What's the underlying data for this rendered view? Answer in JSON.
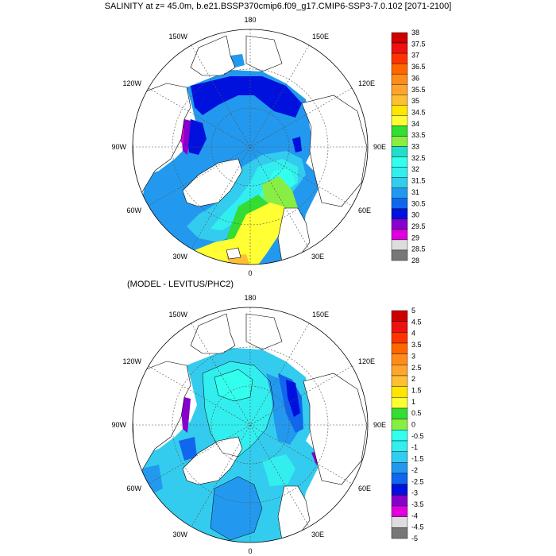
{
  "top_panel": {
    "title": "SALINITY at z=  45.0m, b.e21.BSSP370cmip6.f09_g17.CMIP6-SSP3-7.0.102 [2071-2100]",
    "lon_labels": {
      "n180": "180",
      "n150e": "150E",
      "n120e": "120E",
      "n90e": "90E",
      "n60e": "60E",
      "n30e": "30E",
      "n0": "0",
      "n30w": "30W",
      "n60w": "60W",
      "n90w": "90W",
      "n120w": "120W",
      "n150w": "150W"
    },
    "colorbar": {
      "labels": [
        "38",
        "37.5",
        "37",
        "36.5",
        "36",
        "35.5",
        "35",
        "34.5",
        "34",
        "33.5",
        "33",
        "32.5",
        "32",
        "31.5",
        "31",
        "30.5",
        "30",
        "29.5",
        "29",
        "28.5",
        "28"
      ],
      "colors": [
        "#cc0000",
        "#ee1111",
        "#ff3300",
        "#ff6600",
        "#ff8c1a",
        "#ffa52e",
        "#ffbf33",
        "#ffe600",
        "#ffff33",
        "#33dd33",
        "#88ee44",
        "#22ddcc",
        "#33ffee",
        "#33eeee",
        "#33ccee",
        "#2299ee",
        "#1166ee",
        "#0011dd",
        "#8800cc",
        "#dd00dd",
        "#dddddd",
        "#777777"
      ]
    }
  },
  "bottom_panel": {
    "subtitle": "(MODEL - LEVITUS/PHC2)",
    "lon_labels": {
      "n180": "180",
      "n150e": "150E",
      "n120e": "120E",
      "n90e": "90E",
      "n60e": "60E",
      "n30e": "30E",
      "n0": "0",
      "n30w": "30W",
      "n60w": "60W",
      "n90w": "90W",
      "n120w": "120W",
      "n150w": "150W"
    },
    "colorbar": {
      "labels": [
        "5",
        "4.5",
        "4",
        "3.5",
        "3",
        "2.5",
        "2",
        "1.5",
        "1",
        "0.5",
        "0",
        "-0.5",
        "-1",
        "-1.5",
        "-2",
        "-2.5",
        "-3",
        "-3.5",
        "-4",
        "-4.5",
        "-5"
      ],
      "colors": [
        "#cc0000",
        "#ee1111",
        "#ff3300",
        "#ff6600",
        "#ff8c1a",
        "#ffa52e",
        "#ffbf33",
        "#ffe600",
        "#ffff33",
        "#33dd33",
        "#88ee44",
        "#33ffee",
        "#33eeee",
        "#33ccee",
        "#2299ee",
        "#1166ee",
        "#0011dd",
        "#8800cc",
        "#dd00dd",
        "#dddddd",
        "#777777"
      ]
    }
  },
  "colors": {
    "land": "#ffffff",
    "coast": "#000000",
    "grid": "#555555"
  }
}
